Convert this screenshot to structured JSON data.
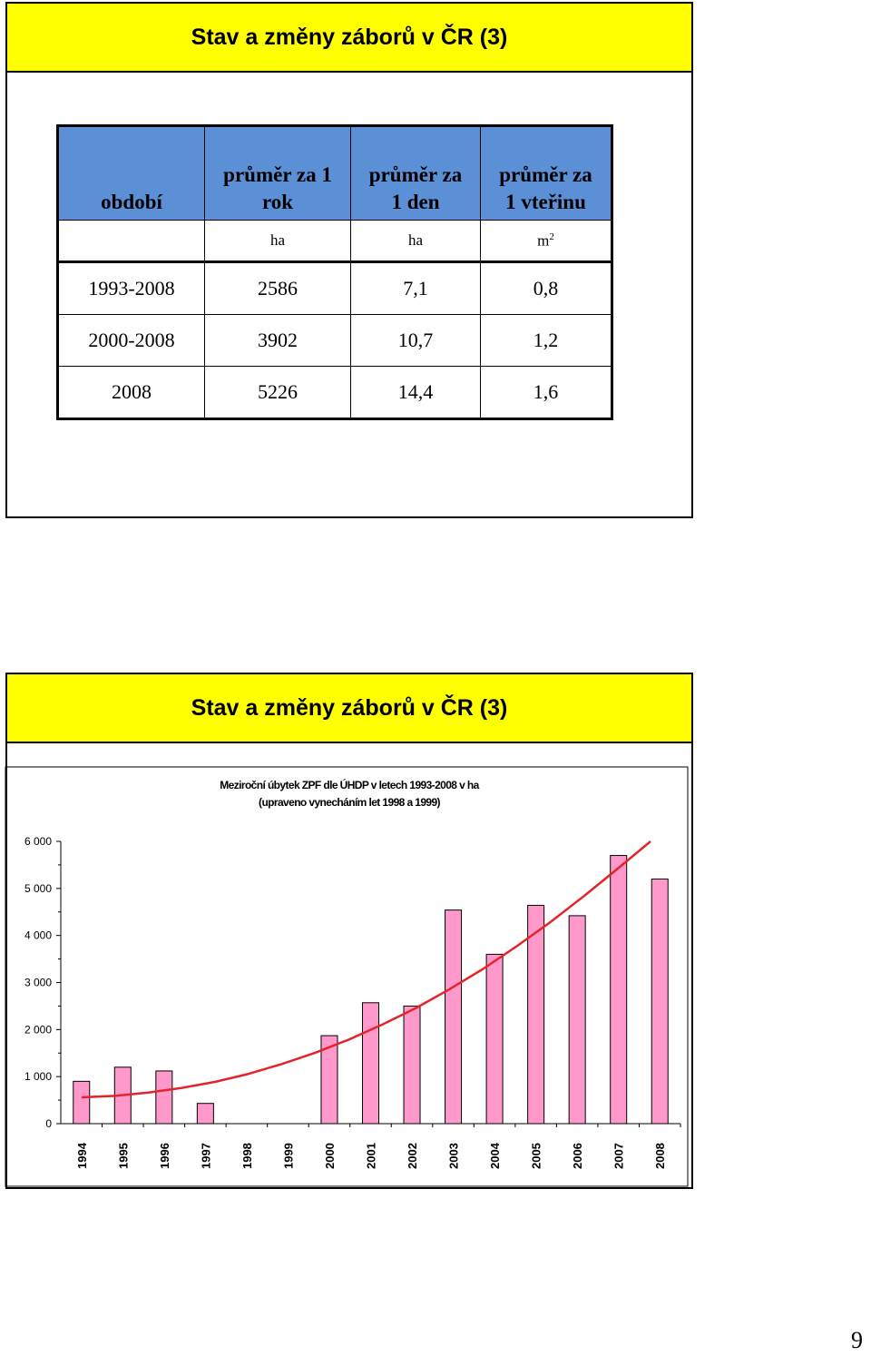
{
  "slide1": {
    "title": "Stav a změny záborů v ČR (3)",
    "table": {
      "header": {
        "col1": "období",
        "col2_line1": "průměr za 1",
        "col2_line2": "rok",
        "col3_line1": "průměr za",
        "col3_line2": "1 den",
        "col4_line1": "průměr za",
        "col4_line2": "1 vteřinu"
      },
      "units": {
        "col1": "",
        "col2": "ha",
        "col3": "ha",
        "col4_base": "m",
        "col4_sup": "2"
      },
      "rows": [
        {
          "period": "1993-2008",
          "year": "2586",
          "day": "7,1",
          "second": "0,8"
        },
        {
          "period": "2000-2008",
          "year": "3902",
          "day": "10,7",
          "second": "1,2"
        },
        {
          "period": "2008",
          "year": "5226",
          "day": "14,4",
          "second": "1,6"
        }
      ]
    },
    "colors": {
      "title_bg": "#ffff00",
      "header_bg": "#5b8fd6"
    }
  },
  "slide2": {
    "title": "Stav a změny záborů v ČR (3)"
  },
  "chart_data": {
    "type": "bar",
    "title": "Meziroční úbytek ZPF dle ÚHDP v letech 1993-2008 v ha",
    "subtitle": "(upraveno vynecháním let 1998 a 1999)",
    "categories": [
      "1994",
      "1995",
      "1996",
      "1997",
      "1998",
      "1999",
      "2000",
      "2001",
      "2002",
      "2003",
      "2004",
      "2005",
      "2006",
      "2007",
      "2008"
    ],
    "values": [
      900,
      1200,
      1120,
      430,
      0,
      0,
      1870,
      2570,
      2500,
      4540,
      3600,
      4640,
      4420,
      5700,
      5200
    ],
    "ylim": [
      0,
      6000
    ],
    "yticks": [
      "0",
      "1 000",
      "2 000",
      "3 000",
      "4 000",
      "5 000",
      "6 000"
    ],
    "trendline": {
      "type": "polynomial",
      "color": "#e3242b",
      "values": [
        560,
        590,
        660,
        760,
        890,
        1060,
        1270,
        1510,
        1790,
        2110,
        2460,
        2860,
        3290,
        3770,
        4280,
        4830,
        5410,
        6020
      ]
    },
    "bar_color": "#ff99cc",
    "grid": false,
    "legend": "none"
  },
  "page_number": "9"
}
